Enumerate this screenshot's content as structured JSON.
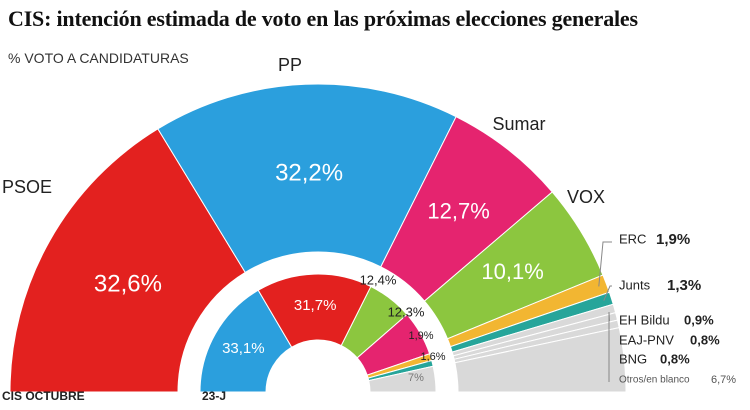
{
  "title": "CIS: intención estimada de voto en las próximas elecciones generales",
  "subtitle": "% VOTO A CANDIDATURAS",
  "colors": {
    "PSOE": "#e3211f",
    "PP": "#2b9fdd",
    "Sumar": "#e5246f",
    "VOX": "#8cc63f",
    "ERC": "#f2b632",
    "Junts": "#26a59a",
    "small_parties": "#d9d9d9"
  },
  "chart_data": [
    {
      "type": "pie",
      "subtype": "half-donut",
      "label": "CIS OCTUBRE",
      "series": [
        {
          "category": "PSOE",
          "value": 32.6,
          "value_label": "32,6%",
          "color": "#e3211f"
        },
        {
          "category": "PP",
          "value": 32.2,
          "value_label": "32,2%",
          "color": "#2b9fdd"
        },
        {
          "category": "Sumar",
          "value": 12.7,
          "value_label": "12,7%",
          "color": "#e5246f"
        },
        {
          "category": "VOX",
          "value": 10.1,
          "value_label": "10,1%",
          "color": "#8cc63f"
        },
        {
          "category": "ERC",
          "value": 1.9,
          "value_label": "1,9%",
          "color": "#f2b632"
        },
        {
          "category": "Junts",
          "value": 1.3,
          "value_label": "1,3%",
          "color": "#26a59a"
        },
        {
          "category": "EH Bildu",
          "value": 0.9,
          "value_label": "0,9%",
          "color": "#d9d9d9"
        },
        {
          "category": "EAJ-PNV",
          "value": 0.8,
          "value_label": "0,8%",
          "color": "#d9d9d9"
        },
        {
          "category": "BNG",
          "value": 0.8,
          "value_label": "0,8%",
          "color": "#d9d9d9"
        },
        {
          "category": "Otros/en blanco",
          "value": 6.7,
          "value_label": "6,7%",
          "color": "#d9d9d9"
        }
      ]
    },
    {
      "type": "pie",
      "subtype": "half-donut",
      "label": "23-J",
      "series": [
        {
          "category": "PP",
          "value": 33.1,
          "value_label": "33,1%",
          "color": "#2b9fdd"
        },
        {
          "category": "PSOE",
          "value": 31.7,
          "value_label": "31,7%",
          "color": "#e3211f"
        },
        {
          "category": "VOX",
          "value": 12.4,
          "value_label": "12,4%",
          "color": "#8cc63f"
        },
        {
          "category": "Sumar",
          "value": 12.3,
          "value_label": "12,3%",
          "color": "#e5246f"
        },
        {
          "category": "ERC",
          "value": 1.9,
          "value_label": "1,9%",
          "color": "#f2b632"
        },
        {
          "category": "Junts",
          "value": 1.6,
          "value_label": "1,6%",
          "color": "#26a59a"
        },
        {
          "category": "Otros",
          "value": 7.0,
          "value_label": "7%",
          "color": "#d9d9d9"
        }
      ]
    }
  ]
}
